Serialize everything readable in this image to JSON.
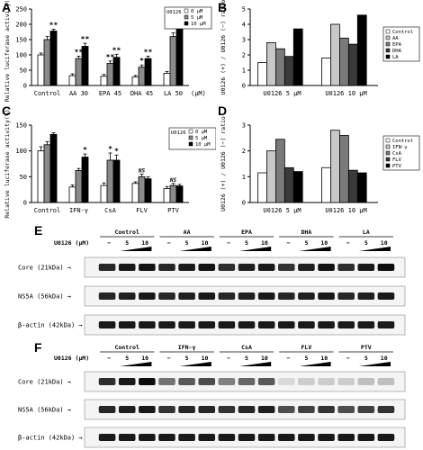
{
  "figure": {
    "panels": [
      "A",
      "B",
      "C",
      "D",
      "E",
      "F"
    ]
  },
  "chart_data": [
    {
      "id": "A",
      "type": "bar",
      "ylabel": "Relative luciferase activity(%)",
      "xlabel_unit": "(μM)",
      "categories": [
        "Control",
        "AA 30",
        "EPA 45",
        "DHA 45",
        "LA 50"
      ],
      "series": [
        {
          "name": "0 μM",
          "values": [
            100,
            32,
            30,
            28,
            40
          ]
        },
        {
          "name": "5 μM",
          "values": [
            150,
            88,
            72,
            60,
            160
          ]
        },
        {
          "name": "10 μM",
          "values": [
            178,
            128,
            92,
            88,
            200
          ]
        }
      ],
      "errors": [
        [
          6,
          6,
          6,
          5,
          6
        ],
        [
          10,
          8,
          8,
          7,
          12
        ],
        [
          6,
          10,
          10,
          8,
          10
        ]
      ],
      "significance": [
        [
          "",
          "",
          "",
          "",
          ""
        ],
        [
          "",
          "**",
          "**",
          "*",
          "**"
        ],
        [
          "**",
          "**",
          "**",
          "**",
          "**"
        ]
      ],
      "legend_title": "U0126",
      "ylim": [
        0,
        250
      ],
      "yticks": [
        0,
        50,
        100,
        150,
        200,
        250
      ]
    },
    {
      "id": "B",
      "type": "bar",
      "ylabel": "U0126 (+) / U0126 (−) ratio",
      "categories": [
        "U0126 5 μM",
        "U0126 10 μM"
      ],
      "series": [
        {
          "name": "Control",
          "values": [
            1.5,
            1.8
          ]
        },
        {
          "name": "AA",
          "values": [
            2.8,
            4.0
          ]
        },
        {
          "name": "EPA",
          "values": [
            2.4,
            3.1
          ]
        },
        {
          "name": "DHA",
          "values": [
            1.9,
            2.7
          ]
        },
        {
          "name": "LA",
          "values": [
            3.7,
            4.6
          ]
        }
      ],
      "ylim": [
        0,
        5
      ],
      "yticks": [
        0,
        1,
        2,
        3,
        4,
        5
      ]
    },
    {
      "id": "C",
      "type": "bar",
      "ylabel": "Relative luciferase activity(%)",
      "categories": [
        "Control",
        "IFN-γ",
        "CsA",
        "FLV",
        "PTV"
      ],
      "series": [
        {
          "name": "0 μM",
          "values": [
            100,
            30,
            33,
            37,
            27
          ]
        },
        {
          "name": "5 μM",
          "values": [
            112,
            62,
            82,
            50,
            33
          ]
        },
        {
          "name": "10 μM",
          "values": [
            132,
            88,
            82,
            46,
            32
          ]
        }
      ],
      "errors": [
        [
          8,
          4,
          5,
          3,
          4
        ],
        [
          6,
          4,
          14,
          5,
          4
        ],
        [
          3,
          6,
          10,
          4,
          3
        ]
      ],
      "significance": [
        [
          "",
          "",
          "",
          "",
          ""
        ],
        [
          "",
          "",
          "*",
          "NS",
          "NS"
        ],
        [
          "",
          "*",
          "*",
          "",
          ""
        ]
      ],
      "legend_title": "U0126",
      "ylim": [
        0,
        150
      ],
      "yticks": [
        0,
        50,
        100,
        150
      ]
    },
    {
      "id": "D",
      "type": "bar",
      "ylabel": "U0126 (+) / U0126 (−) ratio",
      "categories": [
        "U0126 5 μM",
        "U0126 10 μM"
      ],
      "series": [
        {
          "name": "Control",
          "values": [
            1.15,
            1.35
          ]
        },
        {
          "name": "IFN-γ",
          "values": [
            2.0,
            2.8
          ]
        },
        {
          "name": "CsA",
          "values": [
            2.45,
            2.6
          ]
        },
        {
          "name": "FLV",
          "values": [
            1.35,
            1.25
          ]
        },
        {
          "name": "PTV",
          "values": [
            1.2,
            1.15
          ]
        }
      ],
      "ylim": [
        0,
        3
      ],
      "yticks": [
        0,
        1,
        2,
        3
      ]
    }
  ],
  "blots": {
    "E": {
      "groups": [
        "Control",
        "AA",
        "EPA",
        "DHA",
        "LA"
      ],
      "treatment_label": "U0126 (μM)",
      "doses": [
        "−",
        "5",
        "10"
      ],
      "rows": [
        "Core (21kDa)",
        "NS5A (56kDa)",
        "β-actin (42kDa)"
      ]
    },
    "F": {
      "groups": [
        "Control",
        "IFN-γ",
        "CsA",
        "FLV",
        "PTV"
      ],
      "treatment_label": "U0126 (μM)",
      "doses": [
        "−",
        "5",
        "10"
      ],
      "rows": [
        "Core (21kDa)",
        "NS5A (56kDa)",
        "β-actin (42kDa)"
      ]
    }
  }
}
